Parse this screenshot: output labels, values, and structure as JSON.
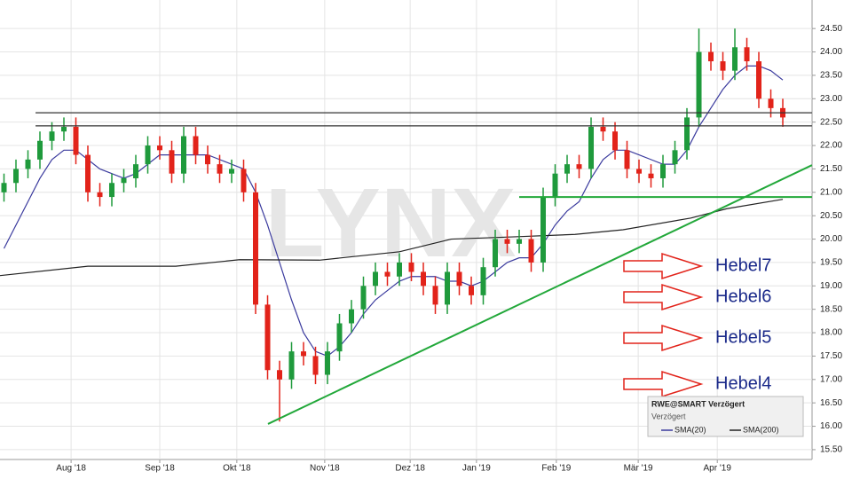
{
  "chart_data": {
    "type": "candlestick",
    "title": "RWE@SMART Verzögert",
    "subtitle": "Verzögert",
    "watermark": "LYNX",
    "x": [
      1,
      4,
      7,
      10,
      13,
      16,
      19,
      22,
      25,
      28,
      31,
      34,
      37,
      40,
      43,
      46,
      49,
      52,
      55,
      58,
      61,
      64,
      67,
      70,
      73,
      76,
      79,
      82,
      85,
      88,
      91,
      94,
      97,
      100,
      103,
      106,
      109,
      112,
      115,
      118,
      121,
      124,
      127,
      130,
      133,
      136,
      139,
      142,
      145,
      148,
      151,
      154,
      157,
      160,
      163,
      166,
      169,
      172,
      175,
      178,
      181,
      184,
      187,
      190,
      193,
      196
    ],
    "open": [
      21.0,
      21.2,
      21.5,
      21.7,
      22.1,
      22.3,
      22.4,
      21.8,
      21.0,
      20.9,
      21.2,
      21.3,
      21.6,
      22.0,
      21.9,
      21.4,
      22.2,
      21.8,
      21.6,
      21.4,
      21.5,
      21.0,
      18.6,
      17.2,
      17.0,
      17.6,
      17.5,
      17.1,
      17.6,
      18.2,
      18.5,
      19.0,
      19.3,
      19.2,
      19.5,
      19.3,
      19.0,
      18.6,
      19.3,
      19.0,
      18.8,
      19.4,
      20.0,
      19.9,
      20.0,
      19.5,
      20.9,
      21.4,
      21.6,
      21.5,
      22.4,
      22.3,
      21.9,
      21.5,
      21.4,
      21.3,
      21.6,
      21.9,
      22.6,
      24.0,
      23.8,
      23.6,
      24.1,
      23.8,
      23.0,
      22.8
    ],
    "high": [
      21.4,
      21.7,
      21.9,
      22.3,
      22.5,
      22.6,
      22.6,
      22.0,
      21.2,
      21.4,
      21.5,
      21.8,
      22.2,
      22.2,
      22.1,
      22.4,
      22.4,
      22.0,
      21.8,
      21.7,
      21.7,
      21.2,
      18.8,
      17.4,
      17.8,
      17.8,
      17.7,
      17.8,
      18.4,
      18.7,
      19.2,
      19.5,
      19.5,
      19.7,
      19.7,
      19.5,
      19.2,
      19.5,
      19.5,
      19.2,
      19.6,
      20.2,
      20.2,
      20.2,
      20.2,
      21.1,
      21.6,
      21.8,
      21.8,
      22.6,
      22.6,
      22.5,
      22.1,
      21.7,
      21.6,
      21.8,
      22.1,
      22.8,
      24.5,
      24.2,
      24.0,
      24.5,
      24.3,
      24.0,
      23.2,
      23.0
    ],
    "low": [
      20.8,
      21.0,
      21.3,
      21.5,
      21.9,
      22.1,
      21.6,
      20.8,
      20.7,
      20.7,
      21.0,
      21.1,
      21.4,
      21.7,
      21.2,
      21.2,
      21.6,
      21.4,
      21.2,
      21.2,
      20.8,
      18.4,
      17.0,
      16.1,
      16.8,
      17.3,
      16.9,
      16.9,
      17.4,
      18.0,
      18.3,
      18.8,
      19.0,
      19.0,
      19.1,
      18.8,
      18.4,
      18.4,
      18.8,
      18.6,
      18.6,
      19.2,
      19.7,
      19.7,
      19.3,
      19.3,
      20.7,
      21.2,
      21.3,
      21.3,
      22.1,
      21.7,
      21.3,
      21.2,
      21.1,
      21.1,
      21.4,
      21.7,
      22.4,
      23.6,
      23.4,
      23.4,
      23.6,
      22.8,
      22.6,
      22.4
    ],
    "close": [
      21.2,
      21.5,
      21.7,
      22.1,
      22.3,
      22.4,
      21.8,
      21.0,
      20.9,
      21.2,
      21.3,
      21.6,
      22.0,
      21.9,
      21.4,
      22.2,
      21.8,
      21.6,
      21.4,
      21.5,
      21.0,
      18.6,
      17.2,
      17.0,
      17.6,
      17.5,
      17.1,
      17.6,
      18.2,
      18.5,
      19.0,
      19.3,
      19.2,
      19.5,
      19.3,
      19.0,
      18.6,
      19.3,
      19.0,
      18.8,
      19.4,
      20.0,
      19.9,
      20.0,
      19.5,
      20.9,
      21.4,
      21.6,
      21.5,
      22.4,
      22.3,
      21.9,
      21.5,
      21.4,
      21.3,
      21.6,
      21.9,
      22.6,
      24.0,
      23.8,
      23.6,
      24.1,
      23.8,
      23.0,
      22.8,
      22.6
    ],
    "up_color": "#1f9a3c",
    "down_color": "#e2231a",
    "series": [
      {
        "name": "SMA(20)",
        "color": "#3b3b9e",
        "values": [
          19.8,
          20.3,
          20.8,
          21.3,
          21.7,
          21.9,
          21.9,
          21.7,
          21.5,
          21.4,
          21.3,
          21.4,
          21.6,
          21.8,
          21.8,
          21.8,
          21.8,
          21.8,
          21.7,
          21.6,
          21.5,
          21.0,
          20.3,
          19.5,
          18.7,
          18.0,
          17.6,
          17.5,
          17.7,
          18.0,
          18.4,
          18.7,
          18.9,
          19.1,
          19.2,
          19.2,
          19.2,
          19.1,
          19.1,
          19.0,
          19.1,
          19.3,
          19.5,
          19.6,
          19.6,
          19.9,
          20.3,
          20.6,
          20.8,
          21.3,
          21.7,
          21.9,
          21.9,
          21.8,
          21.7,
          21.6,
          21.6,
          21.9,
          22.4,
          22.8,
          23.2,
          23.5,
          23.7,
          23.7,
          23.6,
          23.4
        ]
      },
      {
        "name": "SMA(200)",
        "color": "#222222",
        "x": [
          0,
          22,
          44,
          60,
          80,
          100,
          113,
          129,
          144,
          156,
          173,
          182,
          196
        ],
        "values": [
          19.22,
          19.42,
          19.42,
          19.56,
          19.55,
          19.73,
          20.0,
          20.05,
          20.1,
          20.2,
          20.45,
          20.65,
          20.85
        ]
      }
    ],
    "lines": [
      {
        "color": "#333333",
        "x": [
          8.9,
          203.3
        ],
        "y": [
          22.7,
          22.7
        ]
      },
      {
        "color": "#333333",
        "x": [
          8.9,
          203.3
        ],
        "y": [
          22.42,
          22.42
        ]
      },
      {
        "color": "#22a83a",
        "x": [
          130,
          203.3
        ],
        "y": [
          20.9,
          20.9
        ]
      },
      {
        "color": "#22a83a",
        "x": [
          67.1,
          203.3
        ],
        "y": [
          16.05,
          21.58
        ]
      }
    ],
    "annotations": [
      "Hebel7",
      "Hebel6",
      "Hebel5",
      "Hebel4"
    ],
    "xlim": [
      0,
      203.33
    ],
    "ylim": [
      15.29,
      25.11
    ],
    "xticks": [
      {
        "value": 17.8,
        "label": "Aug '18"
      },
      {
        "value": 40,
        "label": "Sep '18"
      },
      {
        "value": 59.3,
        "label": "Okt '18"
      },
      {
        "value": 81.3,
        "label": "Nov '18"
      },
      {
        "value": 102.7,
        "label": "Dez '18"
      },
      {
        "value": 119.3,
        "label": "Jan '19"
      },
      {
        "value": 139.3,
        "label": "Feb '19"
      },
      {
        "value": 159.8,
        "label": "Mär '19"
      },
      {
        "value": 179.6,
        "label": "Apr '19"
      }
    ],
    "yticks": [
      {
        "value": 15.5,
        "label": "15.50"
      },
      {
        "value": 16,
        "label": "16.00"
      },
      {
        "value": 16.5,
        "label": "16.50"
      },
      {
        "value": 17,
        "label": "17.00"
      },
      {
        "value": 17.5,
        "label": "17.50"
      },
      {
        "value": 18,
        "label": "18.00"
      },
      {
        "value": 18.5,
        "label": "18.50"
      },
      {
        "value": 19,
        "label": "19.00"
      },
      {
        "value": 19.5,
        "label": "19.50"
      },
      {
        "value": 20,
        "label": "20.00"
      },
      {
        "value": 20.5,
        "label": "20.50"
      },
      {
        "value": 21,
        "label": "21.00"
      },
      {
        "value": 21.5,
        "label": "21.50"
      },
      {
        "value": 22,
        "label": "22.00"
      },
      {
        "value": 22.5,
        "label": "22.50"
      },
      {
        "value": 23,
        "label": "23.00"
      },
      {
        "value": 23.5,
        "label": "23.50"
      },
      {
        "value": 24,
        "label": "24.00"
      },
      {
        "value": 24.5,
        "label": "24.50"
      }
    ],
    "grid": true
  }
}
